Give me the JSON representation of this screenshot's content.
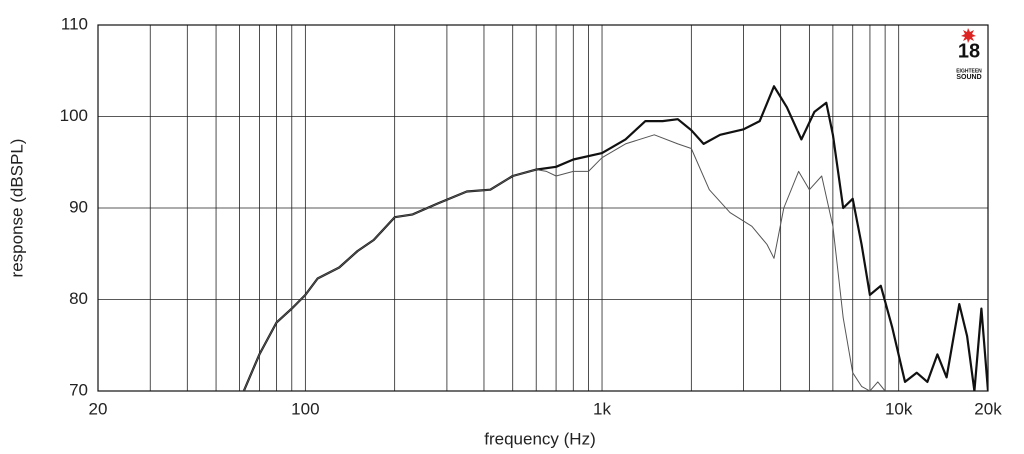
{
  "chart_data": {
    "type": "line",
    "xlabel": "frequency (Hz)",
    "ylabel": "response (dBSPL)",
    "xscale": "log",
    "xlim": [
      20,
      20000
    ],
    "ylim": [
      70,
      110
    ],
    "xticks": [
      20,
      100,
      {
        "value": 1000,
        "label": "1k"
      },
      {
        "value": 10000,
        "label": "10k"
      },
      {
        "value": 20000,
        "label": "20k"
      }
    ],
    "xminor": [
      30,
      40,
      50,
      60,
      70,
      80,
      90,
      200,
      300,
      400,
      500,
      600,
      700,
      800,
      900,
      2000,
      3000,
      4000,
      5000,
      6000,
      7000,
      8000,
      9000
    ],
    "yticks": [
      70,
      80,
      90,
      100,
      110
    ],
    "grid": true,
    "series": [
      {
        "color": "#111111",
        "width": 2.2,
        "x": [
          62,
          70,
          80,
          90,
          100,
          110,
          130,
          150,
          170,
          200,
          230,
          280,
          350,
          420,
          500,
          600,
          700,
          800,
          1000,
          1200,
          1400,
          1600,
          1800,
          2000,
          2200,
          2500,
          3000,
          3400,
          3800,
          4200,
          4700,
          5200,
          5700,
          6000,
          6500,
          7000,
          7500,
          8000,
          8700,
          9500,
          10500,
          11500,
          12500,
          13500,
          14500,
          16000,
          17000,
          18000,
          19000,
          20000
        ],
        "values": [
          70,
          74,
          77.5,
          79,
          80.5,
          82.3,
          83.5,
          85.3,
          86.5,
          89,
          89.3,
          90.5,
          91.8,
          92,
          93.5,
          94.2,
          94.5,
          95.3,
          96,
          97.5,
          99.5,
          99.5,
          99.7,
          98.5,
          97,
          98,
          98.6,
          99.5,
          103.3,
          101,
          97.5,
          100.5,
          101.5,
          98,
          90,
          91,
          86,
          80.5,
          81.5,
          77,
          71,
          72,
          71,
          74,
          71.5,
          79.5,
          76,
          70,
          79,
          70
        ]
      },
      {
        "color": "#555555",
        "width": 1,
        "x": [
          62,
          70,
          80,
          90,
          100,
          110,
          130,
          150,
          170,
          200,
          230,
          280,
          350,
          420,
          500,
          600,
          650,
          700,
          800,
          900,
          1000,
          1200,
          1500,
          1800,
          2000,
          2300,
          2700,
          3200,
          3600,
          3800,
          4100,
          4600,
          5000,
          5500,
          6000,
          6500,
          7000,
          7500,
          8000,
          8500,
          9000
        ],
        "values": [
          70,
          74,
          77.5,
          79,
          80.5,
          82.3,
          83.5,
          85.3,
          86.5,
          89,
          89.3,
          90.5,
          91.8,
          92,
          93.5,
          94.2,
          94,
          93.5,
          94,
          94,
          95.5,
          97,
          98,
          97,
          96.5,
          92,
          89.5,
          88,
          86,
          84.5,
          90,
          94,
          92,
          93.5,
          88,
          78,
          72,
          70.5,
          70,
          71,
          70
        ]
      }
    ]
  },
  "logo": {
    "number": "18",
    "line1": "EIGHTEEN",
    "line2": "SOUND"
  }
}
